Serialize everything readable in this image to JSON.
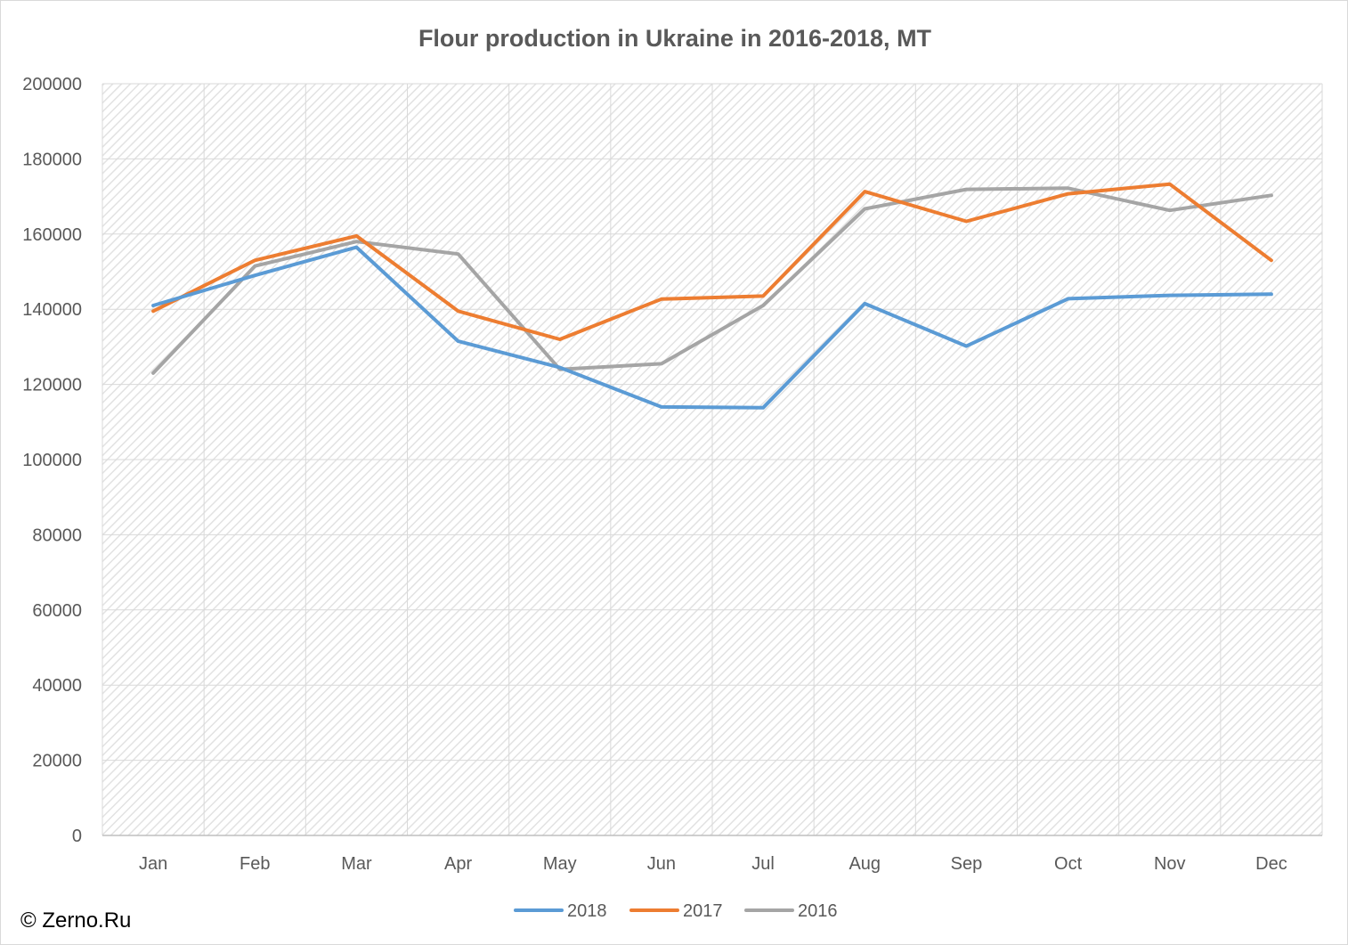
{
  "watermark": "© Zerno.Ru",
  "chart_data": {
    "type": "line",
    "title": "Flour production in Ukraine in 2016-2018, MT",
    "xlabel": "",
    "ylabel": "",
    "categories": [
      "Jan",
      "Feb",
      "Mar",
      "Apr",
      "May",
      "Jun",
      "Jul",
      "Aug",
      "Sep",
      "Oct",
      "Nov",
      "Dec"
    ],
    "ylim": [
      0,
      200000
    ],
    "yticks": [
      "0",
      "20000",
      "40000",
      "60000",
      "80000",
      "100000",
      "120000",
      "140000",
      "160000",
      "180000",
      "200000"
    ],
    "grid": true,
    "legend_position": "bottom",
    "series": [
      {
        "name": "2018",
        "color": "#5b9bd5",
        "values": [
          141000,
          149000,
          156500,
          131500,
          124500,
          114000,
          113800,
          141500,
          130200,
          142800,
          143700,
          144000
        ]
      },
      {
        "name": "2017",
        "color": "#ed7d31",
        "values": [
          139500,
          153000,
          159500,
          139500,
          132000,
          142700,
          143500,
          171300,
          163400,
          170700,
          173300,
          153000
        ]
      },
      {
        "name": "2016",
        "color": "#a5a5a5",
        "values": [
          123000,
          151500,
          158000,
          154700,
          124000,
          125500,
          141000,
          166700,
          171900,
          172200,
          166300,
          170300
        ]
      }
    ]
  }
}
